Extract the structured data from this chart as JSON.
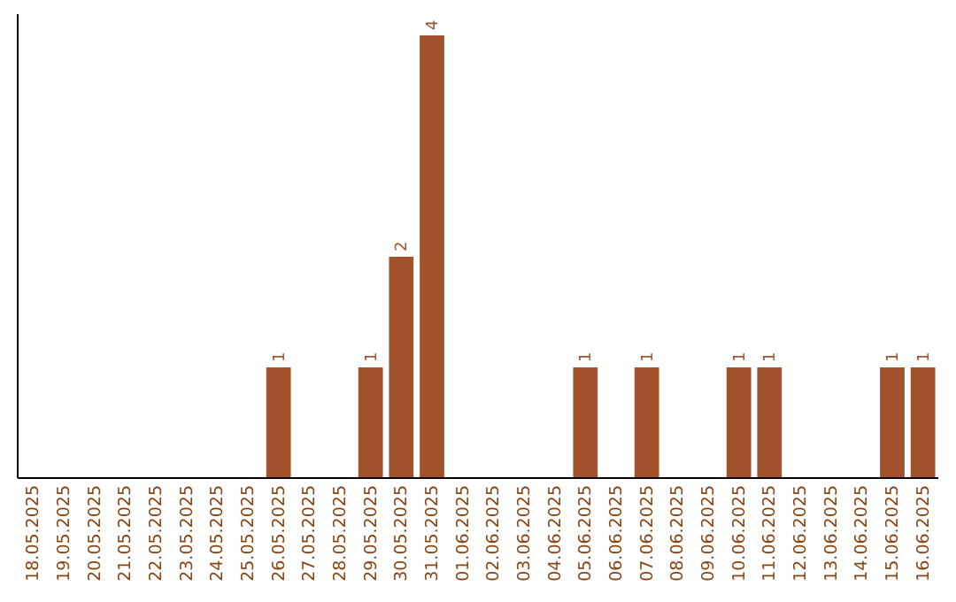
{
  "chart_data": {
    "type": "bar",
    "categories": [
      "18.05.2025",
      "19.05.2025",
      "20.05.2025",
      "21.05.2025",
      "22.05.2025",
      "23.05.2025",
      "24.05.2025",
      "25.05.2025",
      "26.05.2025",
      "27.05.2025",
      "28.05.2025",
      "29.05.2025",
      "30.05.2025",
      "31.05.2025",
      "01.06.2025",
      "02.06.2025",
      "03.06.2025",
      "04.06.2025",
      "05.06.2025",
      "06.06.2025",
      "07.06.2025",
      "08.06.2025",
      "09.06.2025",
      "10.06.2025",
      "11.06.2025",
      "12.06.2025",
      "13.06.2025",
      "14.06.2025",
      "15.06.2025",
      "16.06.2025"
    ],
    "values": [
      0,
      0,
      0,
      0,
      0,
      0,
      0,
      0,
      1,
      0,
      0,
      1,
      2,
      4,
      0,
      0,
      0,
      0,
      1,
      0,
      1,
      0,
      0,
      1,
      1,
      0,
      0,
      0,
      1,
      1
    ],
    "value_labels": [
      null,
      null,
      null,
      null,
      null,
      null,
      null,
      null,
      "1",
      null,
      null,
      "1",
      "2",
      "4",
      null,
      null,
      null,
      null,
      "1",
      null,
      "1",
      null,
      null,
      "1",
      "1",
      null,
      null,
      null,
      "1",
      "1"
    ],
    "color": "#a0522d",
    "tick_labels": "x"
  }
}
